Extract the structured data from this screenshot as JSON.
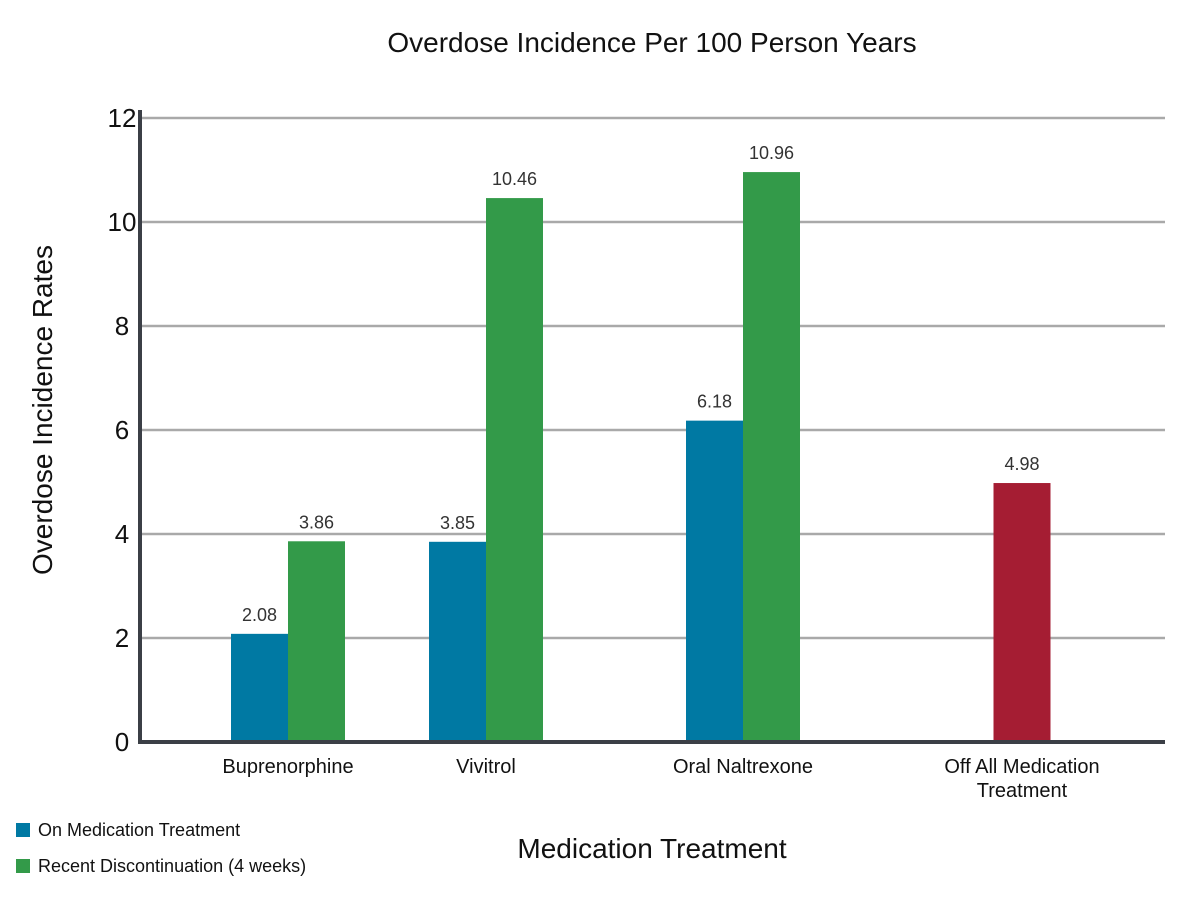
{
  "chart_data": {
    "type": "bar",
    "title": "Overdose Incidence Per 100 Person Years",
    "xlabel": "Medication Treatment",
    "ylabel": "Overdose Incidence Rates",
    "categories": [
      "Buprenorphine",
      "Vivitrol",
      "Oral Naltrexone",
      "Off All Medication Treatment"
    ],
    "category_lines": [
      [
        "Buprenorphine"
      ],
      [
        "Vivitrol"
      ],
      [
        "Oral Naltrexone"
      ],
      [
        "Off All Medication",
        "Treatment"
      ]
    ],
    "series": [
      {
        "name": "On Medication Treatment",
        "color": "#0079a3",
        "values": [
          2.08,
          3.85,
          6.18,
          null
        ]
      },
      {
        "name": "Recent Discontinuation (4 weeks)",
        "color": "#339a49",
        "values": [
          3.86,
          10.46,
          10.96,
          null
        ]
      },
      {
        "name": "",
        "color": "#a51d33",
        "values": [
          null,
          null,
          null,
          4.98
        ]
      }
    ],
    "ylim": [
      0,
      12
    ],
    "yticks": [
      0,
      2,
      4,
      6,
      8,
      10,
      12
    ],
    "grid": true,
    "legend_placement": "bottom-left"
  }
}
